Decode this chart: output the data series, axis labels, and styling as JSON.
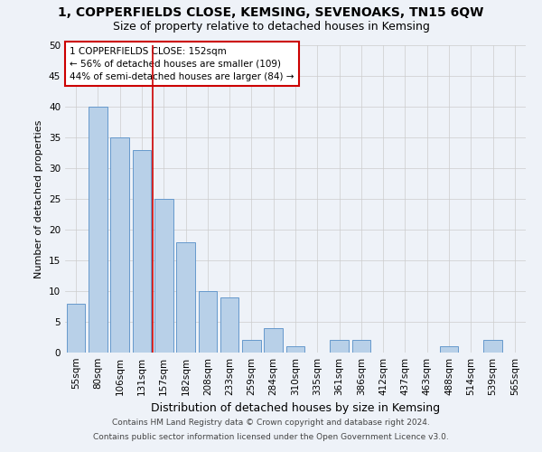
{
  "title": "1, COPPERFIELDS CLOSE, KEMSING, SEVENOAKS, TN15 6QW",
  "subtitle": "Size of property relative to detached houses in Kemsing",
  "xlabel": "Distribution of detached houses by size in Kemsing",
  "ylabel": "Number of detached properties",
  "bar_labels": [
    "55sqm",
    "80sqm",
    "106sqm",
    "131sqm",
    "157sqm",
    "182sqm",
    "208sqm",
    "233sqm",
    "259sqm",
    "284sqm",
    "310sqm",
    "335sqm",
    "361sqm",
    "386sqm",
    "412sqm",
    "437sqm",
    "463sqm",
    "488sqm",
    "514sqm",
    "539sqm",
    "565sqm"
  ],
  "bar_values": [
    8,
    40,
    35,
    33,
    25,
    18,
    10,
    9,
    2,
    4,
    1,
    0,
    2,
    2,
    0,
    0,
    0,
    1,
    0,
    2,
    0
  ],
  "bar_color": "#b8d0e8",
  "bar_edge_color": "#6699cc",
  "vline_x": 3.5,
  "vline_color": "#cc0000",
  "ylim": [
    0,
    50
  ],
  "yticks": [
    0,
    5,
    10,
    15,
    20,
    25,
    30,
    35,
    40,
    45,
    50
  ],
  "annotation_text": "1 COPPERFIELDS CLOSE: 152sqm\n← 56% of detached houses are smaller (109)\n44% of semi-detached houses are larger (84) →",
  "annotation_box_color": "white",
  "annotation_box_edge_color": "#cc0000",
  "footer_line1": "Contains HM Land Registry data © Crown copyright and database right 2024.",
  "footer_line2": "Contains public sector information licensed under the Open Government Licence v3.0.",
  "grid_color": "#cccccc",
  "bg_color": "#eef2f8",
  "title_fontsize": 10,
  "subtitle_fontsize": 9,
  "xlabel_fontsize": 9,
  "ylabel_fontsize": 8,
  "tick_fontsize": 7.5,
  "annotation_fontsize": 7.5,
  "footer_fontsize": 6.5
}
